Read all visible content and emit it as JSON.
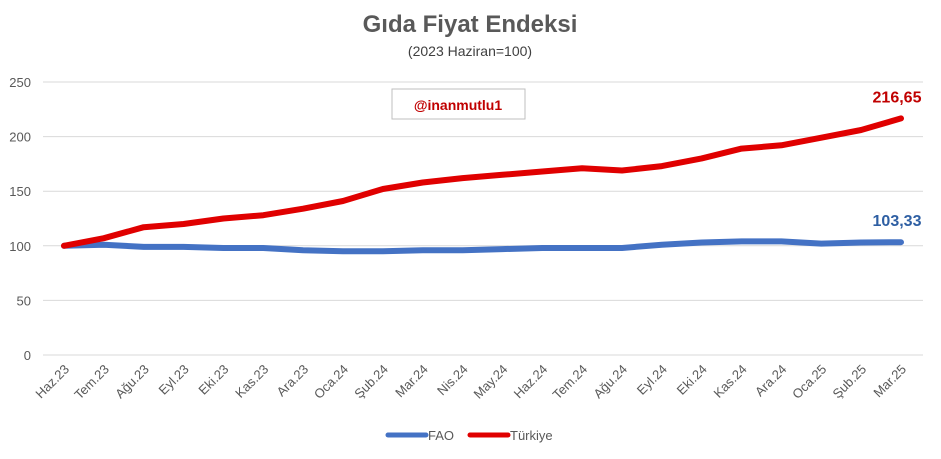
{
  "chart_data": {
    "type": "line",
    "title": "Gıda Fiyat Endeksi",
    "subtitle": "(2023 Haziran=100)",
    "annotation": "@inanmutlu1",
    "categories": [
      "Haz.23",
      "Tem.23",
      "Ağu.23",
      "Eyl.23",
      "Eki.23",
      "Kas.23",
      "Ara.23",
      "Oca.24",
      "Şub.24",
      "Mar.24",
      "Nis.24",
      "May.24",
      "Haz.24",
      "Tem.24",
      "Ağu.24",
      "Eyl.24",
      "Eki.24",
      "Kas.24",
      "Ara.24",
      "Oca.25",
      "Şub.25",
      "Mar.25"
    ],
    "yticks": [
      "0",
      "50",
      "100",
      "150",
      "200",
      "250"
    ],
    "ylim": [
      0,
      250
    ],
    "grid": true,
    "legend_position": "bottom",
    "series": [
      {
        "name": "FAO",
        "color": "#4472c4",
        "values": [
          100,
          101,
          99,
          99,
          98,
          98,
          96,
          95,
          95,
          96,
          96,
          97,
          98,
          98,
          98,
          101,
          103,
          104,
          104,
          102,
          103,
          103.33
        ],
        "end_label": "103,33"
      },
      {
        "name": "Türkiye",
        "color": "#e00000",
        "values": [
          100,
          107,
          117,
          120,
          125,
          128,
          134,
          141,
          152,
          158,
          162,
          165,
          168,
          171,
          169,
          173,
          180,
          189,
          192,
          199,
          206,
          216.65
        ],
        "end_label": "216,65"
      }
    ]
  }
}
